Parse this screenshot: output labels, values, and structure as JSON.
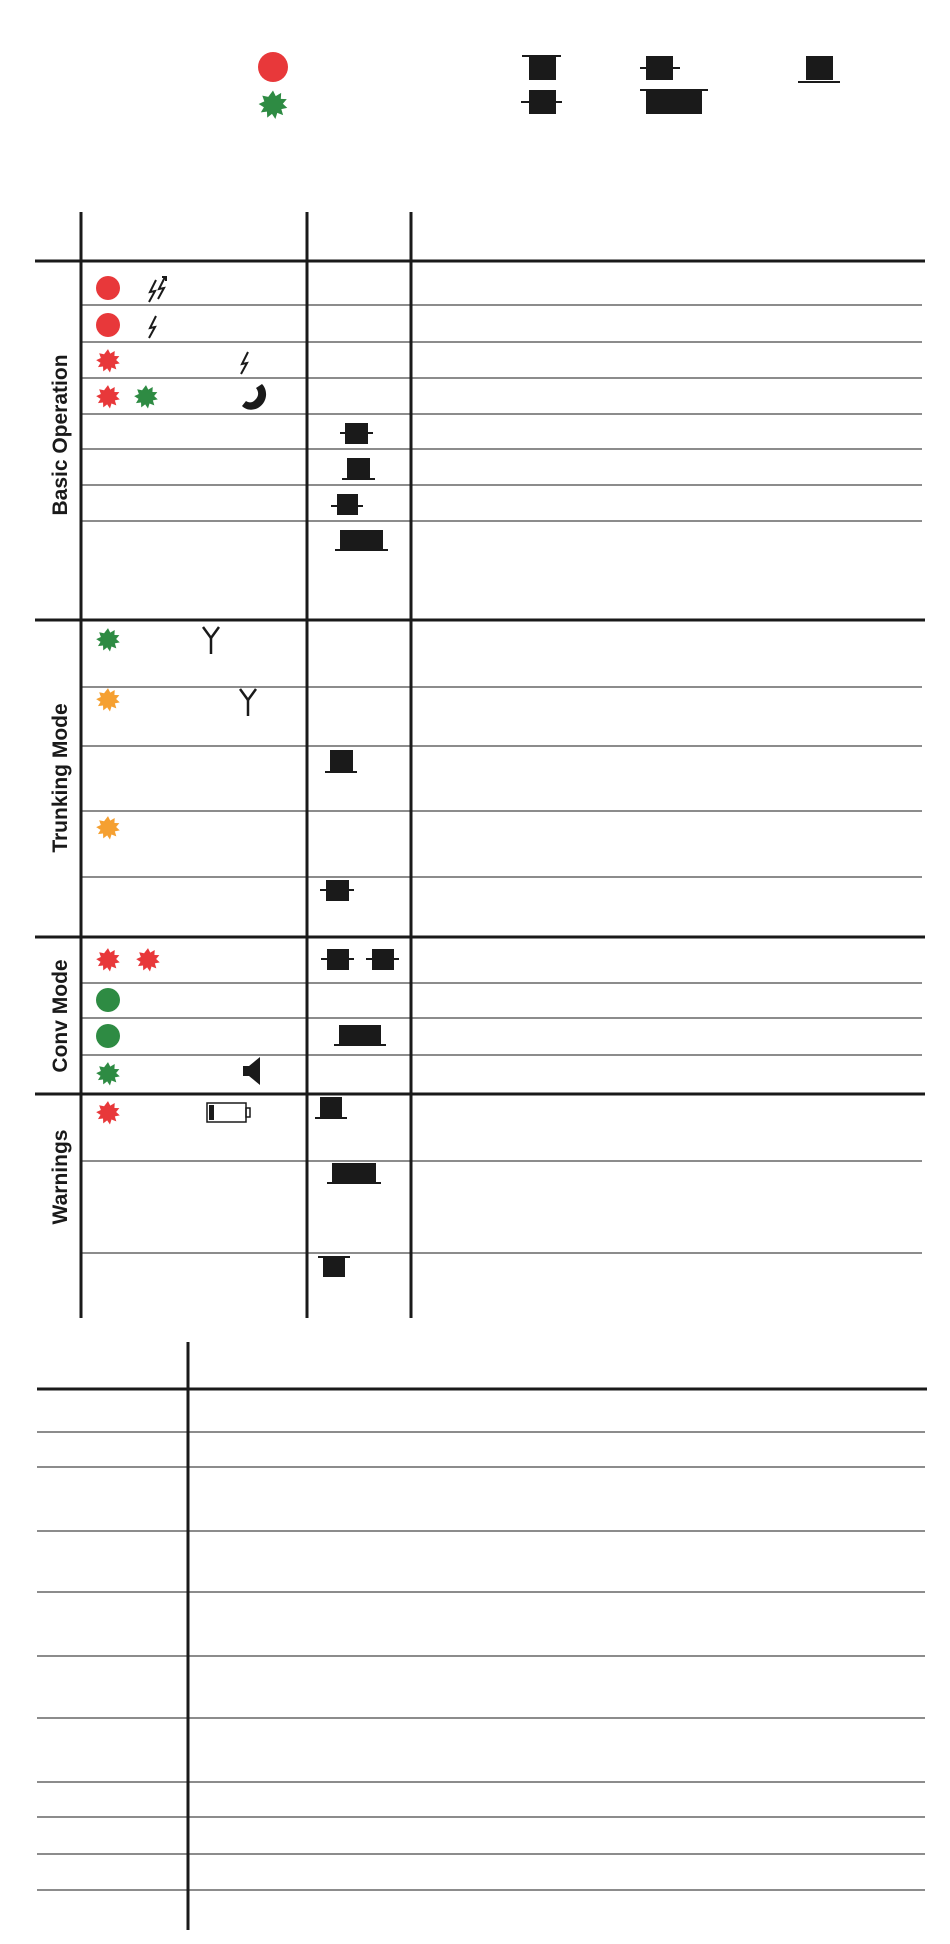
{
  "colors": {
    "ink": "#1a1a1a",
    "led_red": "#e8383a",
    "led_green": "#2e8b43",
    "led_amber": "#f5a031",
    "background": "#ffffff"
  },
  "legend": {
    "led_steady_red": "led-steady-red-icon",
    "led_blinking_green": "led-blinking-green-icon",
    "tone_symbols": [
      "tone-symbol-icon",
      "tone-symbol-icon",
      "tone-symbol-icon",
      "tone-symbol-icon",
      "tone-symbol-icon"
    ]
  },
  "sections": [
    {
      "label": "Basic Operation",
      "rows": 8
    },
    {
      "label": "Trunking Mode",
      "rows": 5
    },
    {
      "label": "Conv Mode",
      "rows": 4
    },
    {
      "label": "Warnings",
      "rows": 3
    }
  ],
  "row_icons": {
    "basic": [
      [
        "led-steady-red-icon",
        "double-lightning-icon"
      ],
      [
        "led-steady-red-icon",
        "lightning-icon"
      ],
      [
        "led-blinking-red-icon",
        "lightning-icon"
      ],
      [
        "led-blinking-red-icon",
        "led-blinking-green-icon",
        "handset-icon"
      ],
      [
        "tone-symbol-icon"
      ],
      [
        "tone-symbol-icon"
      ],
      [
        "tone-symbol-icon"
      ],
      [
        "tone-long-symbol-icon"
      ]
    ],
    "trunking": [
      [
        "led-blinking-green-icon",
        "antenna-icon"
      ],
      [
        "led-blinking-amber-icon",
        "antenna-icon"
      ],
      [
        "tone-symbol-icon"
      ],
      [
        "led-blinking-amber-icon"
      ],
      [
        "tone-symbol-icon"
      ]
    ],
    "conv": [
      [
        "led-blinking-red-icon",
        "led-blinking-red-icon",
        "tone-symbol-icon",
        "tone-symbol-icon"
      ],
      [
        "led-steady-green-icon"
      ],
      [
        "led-steady-green-icon",
        "tone-long-symbol-icon"
      ],
      [
        "led-blinking-green-icon",
        "speaker-icon"
      ]
    ],
    "warnings": [
      [
        "led-blinking-red-icon",
        "low-battery-icon",
        "tone-symbol-icon"
      ],
      [
        "tone-long-symbol-icon"
      ],
      [
        "tone-symbol-icon"
      ]
    ]
  }
}
